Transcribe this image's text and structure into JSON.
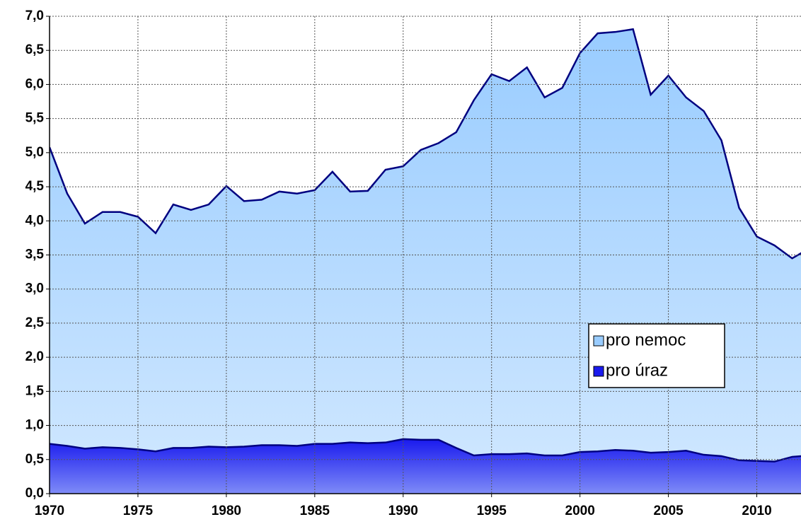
{
  "chart_data": {
    "type": "area",
    "x": [
      1970,
      1971,
      1972,
      1973,
      1974,
      1975,
      1976,
      1977,
      1978,
      1979,
      1980,
      1981,
      1982,
      1983,
      1984,
      1985,
      1986,
      1987,
      1988,
      1989,
      1990,
      1991,
      1992,
      1993,
      1994,
      1995,
      1996,
      1997,
      1998,
      1999,
      2000,
      2001,
      2002,
      2003,
      2004,
      2005,
      2006,
      2007,
      2008,
      2009,
      2010,
      2011,
      2012,
      2013
    ],
    "series": [
      {
        "name": "pro nemoc",
        "color": "#99ccff",
        "line_color": "#000080",
        "values": [
          5.08,
          4.4,
          3.96,
          4.13,
          4.13,
          4.06,
          3.82,
          4.24,
          4.16,
          4.24,
          4.51,
          4.29,
          4.31,
          4.43,
          4.4,
          4.45,
          4.72,
          4.43,
          4.44,
          4.75,
          4.8,
          5.04,
          5.14,
          5.3,
          5.77,
          6.15,
          6.05,
          6.25,
          5.81,
          5.95,
          6.46,
          6.75,
          6.77,
          6.81,
          5.85,
          6.13,
          5.81,
          5.61,
          5.18,
          4.19,
          3.77,
          3.64,
          3.45,
          3.6
        ]
      },
      {
        "name": "pro úraz",
        "color": "#1a1aee",
        "line_color": "#000080",
        "values": [
          0.73,
          0.7,
          0.66,
          0.68,
          0.67,
          0.65,
          0.62,
          0.67,
          0.67,
          0.69,
          0.68,
          0.69,
          0.71,
          0.71,
          0.7,
          0.73,
          0.73,
          0.75,
          0.74,
          0.75,
          0.8,
          0.79,
          0.79,
          0.67,
          0.56,
          0.58,
          0.58,
          0.59,
          0.56,
          0.56,
          0.61,
          0.62,
          0.64,
          0.63,
          0.6,
          0.61,
          0.63,
          0.57,
          0.55,
          0.49,
          0.48,
          0.47,
          0.54,
          0.56
        ]
      }
    ],
    "xlim": [
      1970,
      2012.5
    ],
    "xticks": [
      1970,
      1975,
      1980,
      1985,
      1990,
      1995,
      2000,
      2005,
      2010
    ],
    "ylim": [
      0,
      7
    ],
    "yticks": [
      {
        "value": 0,
        "label": "0,0"
      },
      {
        "value": 0.5,
        "label": "0,5"
      },
      {
        "value": 1,
        "label": "1,0"
      },
      {
        "value": 1.5,
        "label": "1,5"
      },
      {
        "value": 2,
        "label": "2,0"
      },
      {
        "value": 2.5,
        "label": "2,5"
      },
      {
        "value": 3,
        "label": "3,0"
      },
      {
        "value": 3.5,
        "label": "3,5"
      },
      {
        "value": 4,
        "label": "4,0"
      },
      {
        "value": 4.5,
        "label": "4,5"
      },
      {
        "value": 5,
        "label": "5,0"
      },
      {
        "value": 5.5,
        "label": "5,5"
      },
      {
        "value": 6,
        "label": "6,0"
      },
      {
        "value": 6.5,
        "label": "6,5"
      },
      {
        "value": 7,
        "label": "7,0"
      }
    ],
    "grid": true
  }
}
